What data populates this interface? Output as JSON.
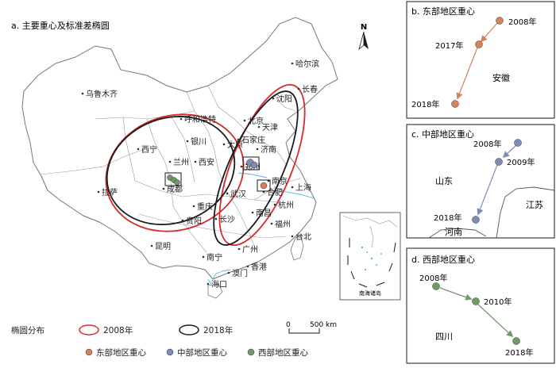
{
  "main": {
    "title": "a. 主要重心及标准差椭圆",
    "north": "N",
    "cities": [
      {
        "id": "urumqi",
        "name": "乌鲁木齐"
      },
      {
        "id": "harbin",
        "name": "哈尔滨"
      },
      {
        "id": "changchun",
        "name": "长春"
      },
      {
        "id": "shenyang",
        "name": "沈阳"
      },
      {
        "id": "hohhot",
        "name": "呼和浩特"
      },
      {
        "id": "beijing",
        "name": "北京"
      },
      {
        "id": "tianjin",
        "name": "天津"
      },
      {
        "id": "shijiazhuang",
        "name": "石家庄"
      },
      {
        "id": "taiyuan",
        "name": "太原"
      },
      {
        "id": "jinan",
        "name": "济南"
      },
      {
        "id": "zhengzhou",
        "name": "郑州"
      },
      {
        "id": "xining",
        "name": "西宁"
      },
      {
        "id": "yinchuan",
        "name": "银川"
      },
      {
        "id": "lanzhou",
        "name": "兰州"
      },
      {
        "id": "xian",
        "name": "西安"
      },
      {
        "id": "hefei",
        "name": "合肥"
      },
      {
        "id": "nanjing",
        "name": "南京"
      },
      {
        "id": "shanghai",
        "name": "上海"
      },
      {
        "id": "hangzhou",
        "name": "杭州"
      },
      {
        "id": "wuhan",
        "name": "武汉"
      },
      {
        "id": "chengdu",
        "name": "成都"
      },
      {
        "id": "chongqing",
        "name": "重庆"
      },
      {
        "id": "changsha",
        "name": "长沙"
      },
      {
        "id": "nanchang",
        "name": "南昌"
      },
      {
        "id": "fuzhou",
        "name": "福州"
      },
      {
        "id": "lhasa",
        "name": "拉萨"
      },
      {
        "id": "guiyang",
        "name": "贵阳"
      },
      {
        "id": "kunming",
        "name": "昆明"
      },
      {
        "id": "nanning",
        "name": "南宁"
      },
      {
        "id": "guangzhou",
        "name": "广州"
      },
      {
        "id": "hongkong",
        "name": "香港"
      },
      {
        "id": "macau",
        "name": "澳门"
      },
      {
        "id": "haikou",
        "name": "海口"
      },
      {
        "id": "taipei",
        "name": "台北"
      }
    ],
    "inset_label": "南海诸岛",
    "scale_zero": "0",
    "scale_label": "500 km"
  },
  "legend": {
    "ellipse_title": "椭圆分布",
    "ellipse_2008": "2008年",
    "ellipse_2018": "2018年",
    "east": "东部地区重心",
    "central": "中部地区重心",
    "west": "西部地区重心"
  },
  "colors": {
    "east": "#d4825a",
    "central": "#7f8cb8",
    "west": "#6e9a66",
    "ellipse_2008": "#d42c2c",
    "ellipse_2018": "#1a1a1a",
    "water": "#5ab4e6"
  },
  "panel_b": {
    "title": "b. 东部地区重心",
    "region": "安徽",
    "points": [
      {
        "label": "2008年"
      },
      {
        "label": "2017年"
      },
      {
        "label": "2018年"
      }
    ]
  },
  "panel_c": {
    "title": "c. 中部地区重心",
    "regions": [
      "山东",
      "江苏",
      "河南"
    ],
    "points": [
      {
        "label": "2008年"
      },
      {
        "label": "2009年"
      },
      {
        "label": "2018年"
      }
    ]
  },
  "panel_d": {
    "title": "d. 西部地区重心",
    "region": "四川",
    "points": [
      {
        "label": "2008年"
      },
      {
        "label": "2010年"
      },
      {
        "label": "2018年"
      }
    ]
  }
}
